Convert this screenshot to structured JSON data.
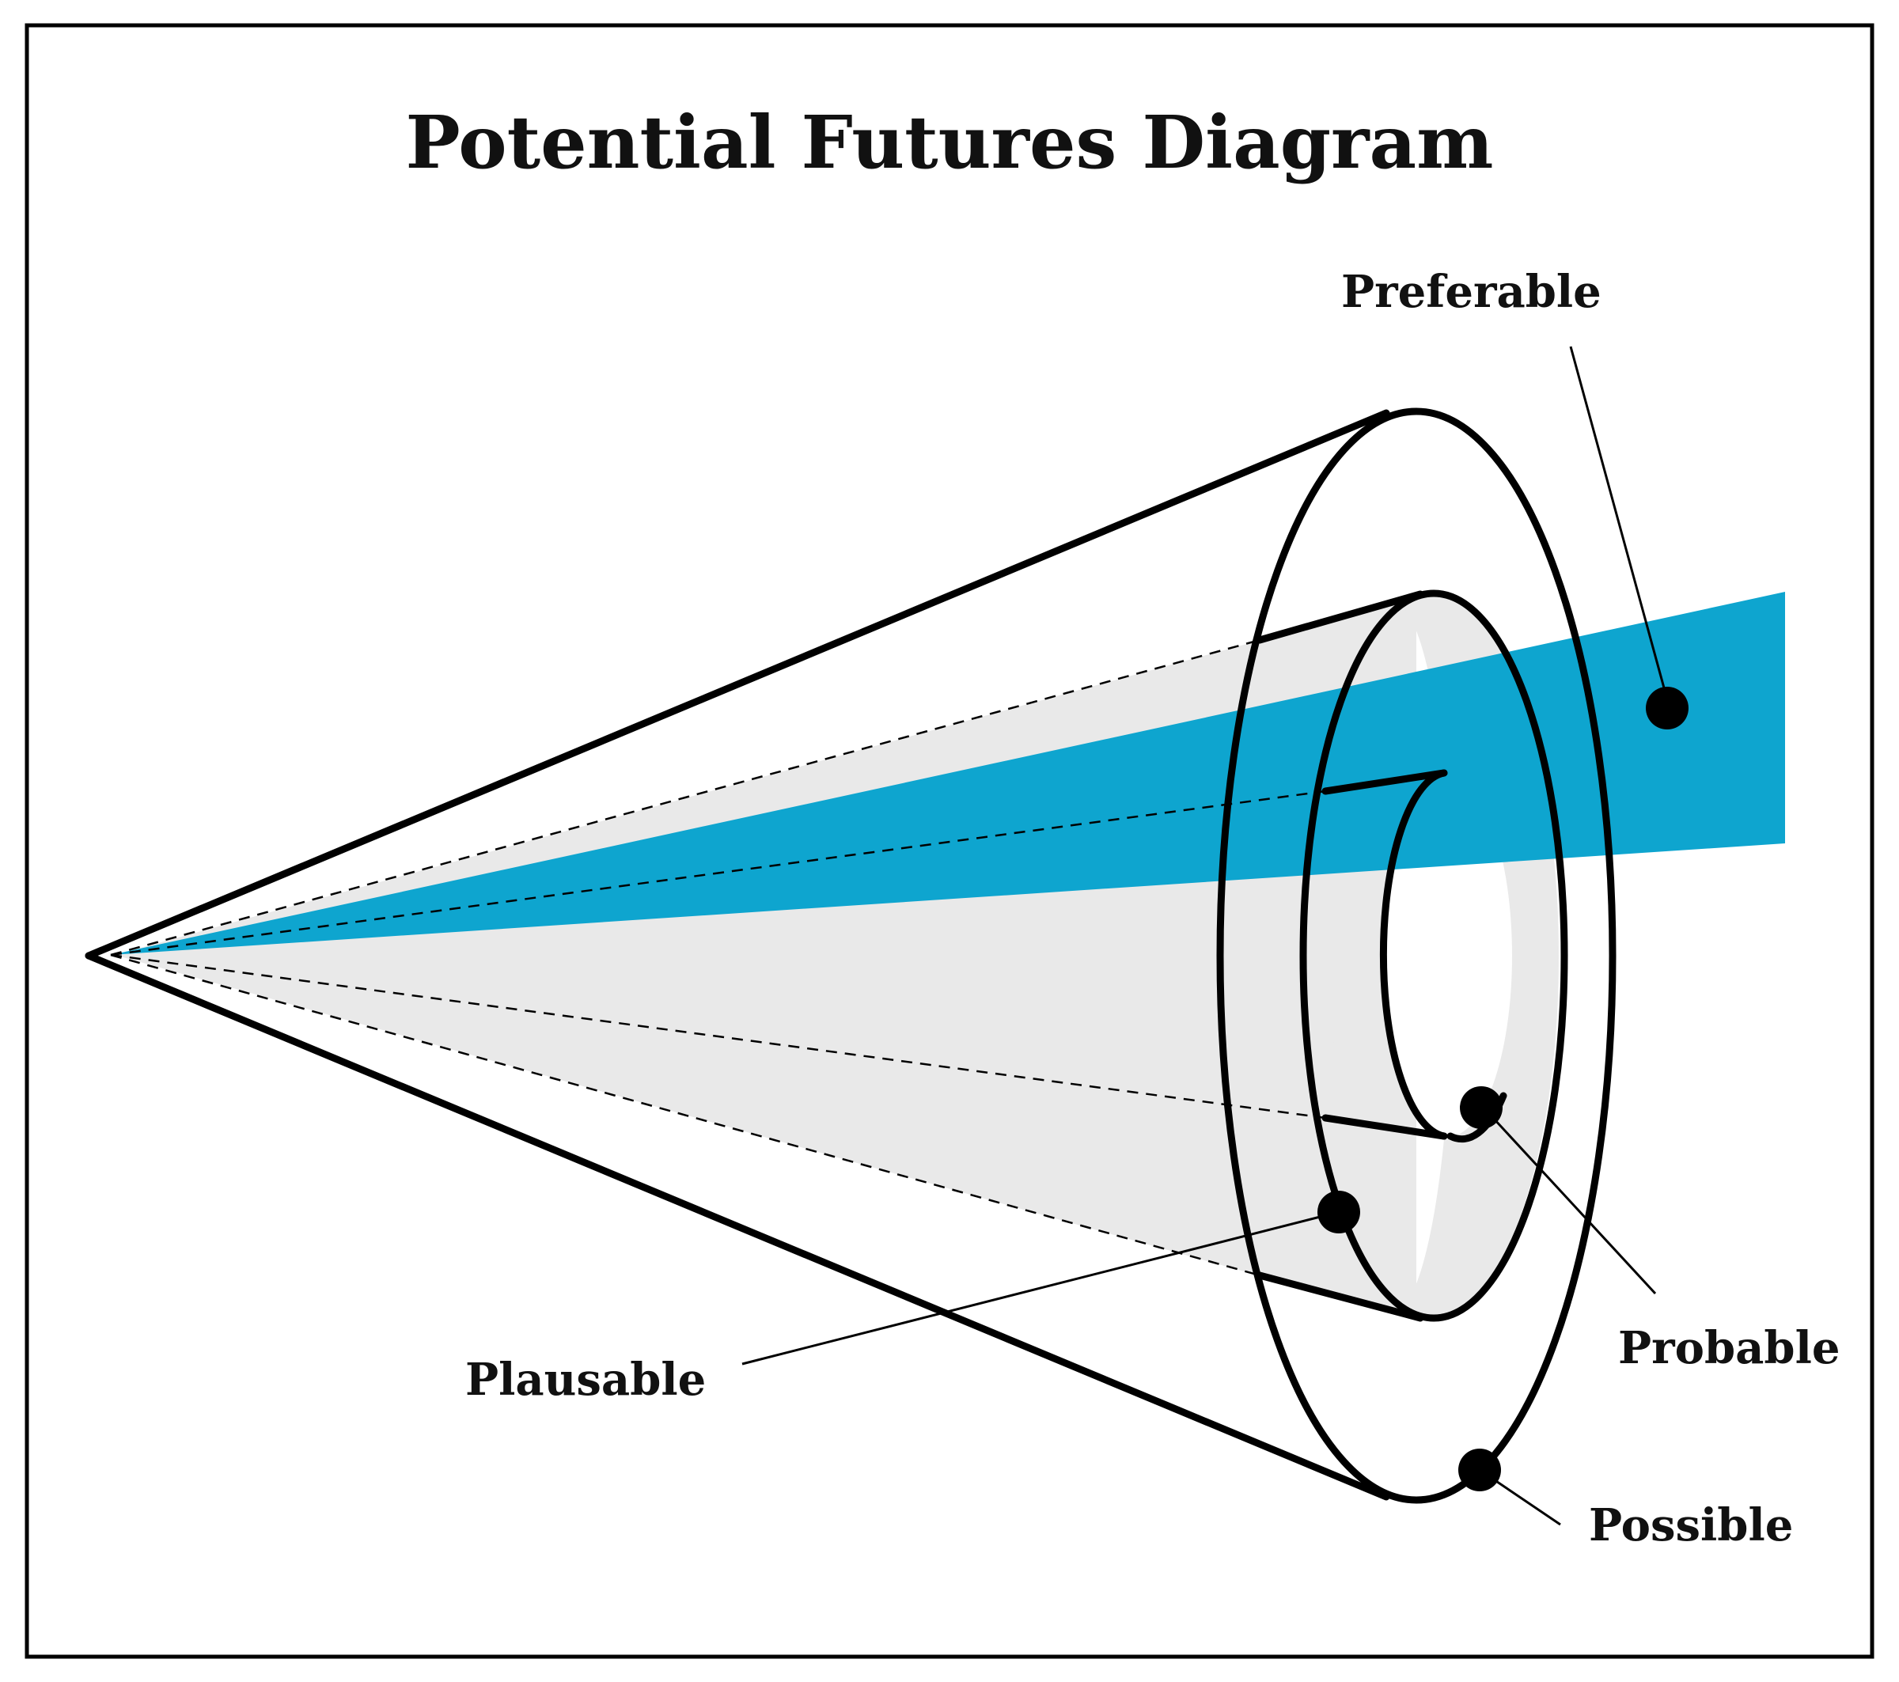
{
  "title": "Potential Futures Diagram",
  "labels": {
    "preferable": "Preferable",
    "probable": "Probable",
    "plausable": "Plausable",
    "possible": "Possible"
  },
  "colors": {
    "preferable_beam": "#0ea5cf",
    "plausible_fill": "#e9e9e9",
    "outline": "#000000",
    "background": "#ffffff"
  }
}
